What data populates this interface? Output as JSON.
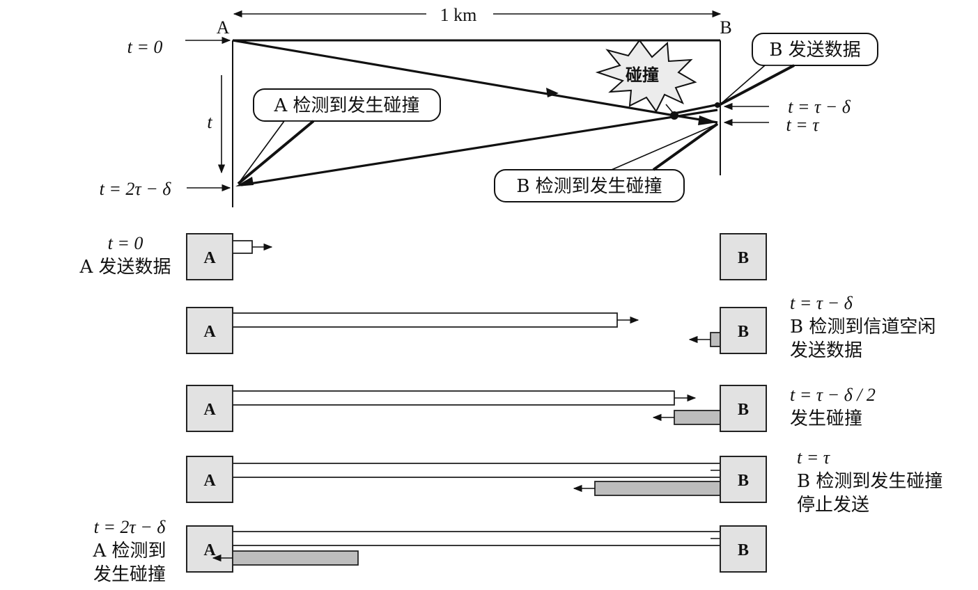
{
  "top": {
    "distance_label": "1 km",
    "station_a": "A",
    "station_b": "B",
    "time_t0": "t = 0",
    "time_axis": "t",
    "time_2tau_minus_delta": "t = 2τ − δ",
    "time_tau_minus_delta": "t = τ − δ",
    "time_tau": "t = τ",
    "collision_burst": "碰撞",
    "callout_a_detect": "A 检测到发生碰撞",
    "callout_b_send": "B 发送数据",
    "callout_b_detect": "B 检测到发生碰撞"
  },
  "rows": [
    {
      "left_line1": "t = 0",
      "left_line2": "A 发送数据",
      "left_line3": "",
      "right_line1": "",
      "right_line2": "",
      "right_line3": "",
      "station_a": "A",
      "station_b": "B"
    },
    {
      "left_line1": "",
      "left_line2": "",
      "left_line3": "",
      "right_line1": "t = τ − δ",
      "right_line2": "B 检测到信道空闲",
      "right_line3": "发送数据",
      "station_a": "A",
      "station_b": "B"
    },
    {
      "left_line1": "",
      "left_line2": "",
      "left_line3": "",
      "right_line1": "t = τ − δ / 2",
      "right_line2": "发生碰撞",
      "right_line3": "",
      "station_a": "A",
      "station_b": "B"
    },
    {
      "left_line1": "",
      "left_line2": "",
      "left_line3": "",
      "right_line1": "t = τ",
      "right_line2": "B 检测到发生碰撞",
      "right_line3": "停止发送",
      "station_a": "A",
      "station_b": "B"
    },
    {
      "left_line1": "t = 2τ − δ",
      "left_line2": "A 检测到",
      "left_line3": "发生碰撞",
      "right_line1": "",
      "right_line2": "",
      "right_line3": "",
      "station_a": "A",
      "station_b": "B"
    }
  ]
}
